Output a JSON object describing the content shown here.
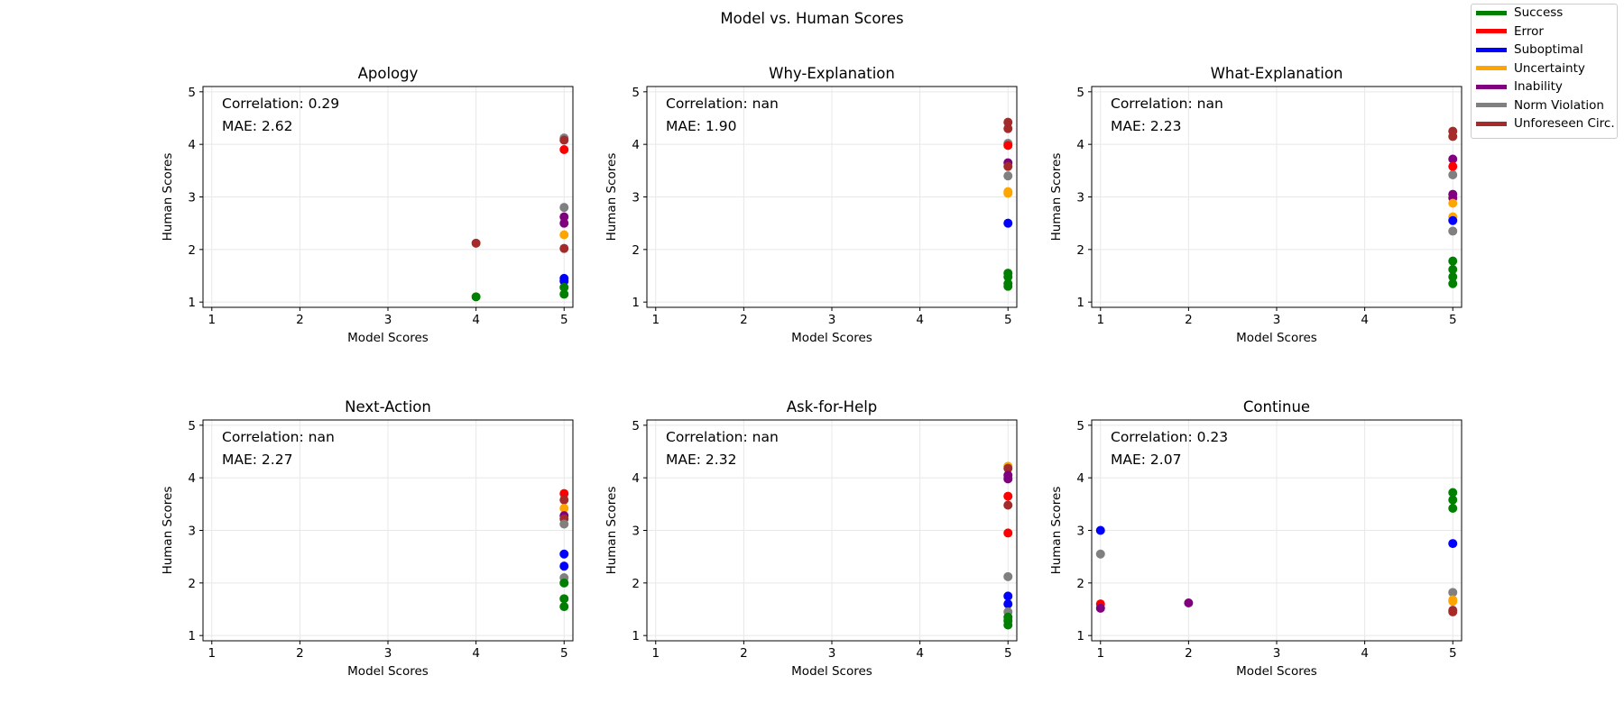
{
  "figure_title": "Model vs. Human Scores",
  "legend": [
    {
      "label": "Success",
      "color": "#008000"
    },
    {
      "label": "Error",
      "color": "#ff0000"
    },
    {
      "label": "Suboptimal",
      "color": "#0000ff"
    },
    {
      "label": "Uncertainty",
      "color": "#ffa500"
    },
    {
      "label": "Inability",
      "color": "#800080"
    },
    {
      "label": "Norm Violation",
      "color": "#808080"
    },
    {
      "label": "Unforeseen Circ.",
      "color": "#a52a2a"
    }
  ],
  "chart_data": [
    {
      "type": "scatter",
      "title": "Apology",
      "xlabel": "Model Scores",
      "ylabel": "Human Scores",
      "xlim": [
        0.9,
        5.1
      ],
      "ylim": [
        0.9,
        5.1
      ],
      "xticks": [
        1,
        2,
        3,
        4,
        5
      ],
      "yticks": [
        1,
        2,
        3,
        4,
        5
      ],
      "grid": true,
      "annotations": [
        "Correlation: 0.29",
        "MAE: 2.62"
      ],
      "points": [
        {
          "x": 5,
          "y": 4.12,
          "series": "Norm Violation"
        },
        {
          "x": 5,
          "y": 4.08,
          "series": "Unforeseen Circ."
        },
        {
          "x": 5,
          "y": 3.9,
          "series": "Error"
        },
        {
          "x": 5,
          "y": 2.8,
          "series": "Norm Violation"
        },
        {
          "x": 5,
          "y": 2.62,
          "series": "Inability"
        },
        {
          "x": 5,
          "y": 2.5,
          "series": "Inability"
        },
        {
          "x": 5,
          "y": 2.28,
          "series": "Uncertainty"
        },
        {
          "x": 5,
          "y": 2.02,
          "series": "Unforeseen Circ."
        },
        {
          "x": 4,
          "y": 2.12,
          "series": "Unforeseen Circ."
        },
        {
          "x": 5,
          "y": 1.45,
          "series": "Suboptimal"
        },
        {
          "x": 5,
          "y": 1.4,
          "series": "Suboptimal"
        },
        {
          "x": 5,
          "y": 1.28,
          "series": "Success"
        },
        {
          "x": 5,
          "y": 1.15,
          "series": "Success"
        },
        {
          "x": 4,
          "y": 1.1,
          "series": "Success"
        }
      ]
    },
    {
      "type": "scatter",
      "title": "Why-Explanation",
      "xlabel": "Model Scores",
      "ylabel": "Human Scores",
      "xlim": [
        0.9,
        5.1
      ],
      "ylim": [
        0.9,
        5.1
      ],
      "xticks": [
        1,
        2,
        3,
        4,
        5
      ],
      "yticks": [
        1,
        2,
        3,
        4,
        5
      ],
      "grid": true,
      "annotations": [
        "Correlation: nan",
        "MAE: 1.90"
      ],
      "points": [
        {
          "x": 5,
          "y": 4.42,
          "series": "Unforeseen Circ."
        },
        {
          "x": 5,
          "y": 4.3,
          "series": "Unforeseen Circ."
        },
        {
          "x": 5,
          "y": 4.02,
          "series": "Norm Violation"
        },
        {
          "x": 5,
          "y": 3.98,
          "series": "Error"
        },
        {
          "x": 5,
          "y": 3.65,
          "series": "Inability"
        },
        {
          "x": 5,
          "y": 3.58,
          "series": "Unforeseen Circ."
        },
        {
          "x": 5,
          "y": 3.4,
          "series": "Norm Violation"
        },
        {
          "x": 5,
          "y": 3.1,
          "series": "Uncertainty"
        },
        {
          "x": 5,
          "y": 3.07,
          "series": "Uncertainty"
        },
        {
          "x": 5,
          "y": 2.5,
          "series": "Suboptimal"
        },
        {
          "x": 5,
          "y": 1.55,
          "series": "Success"
        },
        {
          "x": 5,
          "y": 1.48,
          "series": "Success"
        },
        {
          "x": 5,
          "y": 1.35,
          "series": "Success"
        },
        {
          "x": 5,
          "y": 1.3,
          "series": "Success"
        }
      ]
    },
    {
      "type": "scatter",
      "title": "What-Explanation",
      "xlabel": "Model Scores",
      "ylabel": "Human Scores",
      "xlim": [
        0.9,
        5.1
      ],
      "ylim": [
        0.9,
        5.1
      ],
      "xticks": [
        1,
        2,
        3,
        4,
        5
      ],
      "yticks": [
        1,
        2,
        3,
        4,
        5
      ],
      "grid": true,
      "annotations": [
        "Correlation: nan",
        "MAE: 2.23"
      ],
      "points": [
        {
          "x": 5,
          "y": 4.25,
          "series": "Unforeseen Circ."
        },
        {
          "x": 5,
          "y": 4.15,
          "series": "Unforeseen Circ."
        },
        {
          "x": 5,
          "y": 3.72,
          "series": "Inability"
        },
        {
          "x": 5,
          "y": 3.58,
          "series": "Error"
        },
        {
          "x": 5,
          "y": 3.42,
          "series": "Norm Violation"
        },
        {
          "x": 5,
          "y": 3.05,
          "series": "Inability"
        },
        {
          "x": 5,
          "y": 2.98,
          "series": "Inability"
        },
        {
          "x": 5,
          "y": 2.88,
          "series": "Uncertainty"
        },
        {
          "x": 5,
          "y": 2.62,
          "series": "Uncertainty"
        },
        {
          "x": 5,
          "y": 2.55,
          "series": "Suboptimal"
        },
        {
          "x": 5,
          "y": 2.35,
          "series": "Norm Violation"
        },
        {
          "x": 5,
          "y": 1.78,
          "series": "Success"
        },
        {
          "x": 5,
          "y": 1.62,
          "series": "Success"
        },
        {
          "x": 5,
          "y": 1.48,
          "series": "Success"
        },
        {
          "x": 5,
          "y": 1.35,
          "series": "Success"
        }
      ]
    },
    {
      "type": "scatter",
      "title": "Next-Action",
      "xlabel": "Model Scores",
      "ylabel": "Human Scores",
      "xlim": [
        0.9,
        5.1
      ],
      "ylim": [
        0.9,
        5.1
      ],
      "xticks": [
        1,
        2,
        3,
        4,
        5
      ],
      "yticks": [
        1,
        2,
        3,
        4,
        5
      ],
      "grid": true,
      "annotations": [
        "Correlation: nan",
        "MAE: 2.27"
      ],
      "points": [
        {
          "x": 5,
          "y": 3.7,
          "series": "Error"
        },
        {
          "x": 5,
          "y": 3.58,
          "series": "Unforeseen Circ."
        },
        {
          "x": 5,
          "y": 3.42,
          "series": "Uncertainty"
        },
        {
          "x": 5,
          "y": 3.28,
          "series": "Inability"
        },
        {
          "x": 5,
          "y": 3.22,
          "series": "Unforeseen Circ."
        },
        {
          "x": 5,
          "y": 3.12,
          "series": "Norm Violation"
        },
        {
          "x": 5,
          "y": 2.55,
          "series": "Suboptimal"
        },
        {
          "x": 5,
          "y": 2.32,
          "series": "Suboptimal"
        },
        {
          "x": 5,
          "y": 2.1,
          "series": "Norm Violation"
        },
        {
          "x": 5,
          "y": 2.0,
          "series": "Success"
        },
        {
          "x": 5,
          "y": 1.7,
          "series": "Success"
        },
        {
          "x": 5,
          "y": 1.55,
          "series": "Success"
        }
      ]
    },
    {
      "type": "scatter",
      "title": "Ask-for-Help",
      "xlabel": "Model Scores",
      "ylabel": "Human Scores",
      "xlim": [
        0.9,
        5.1
      ],
      "ylim": [
        0.9,
        5.1
      ],
      "xticks": [
        1,
        2,
        3,
        4,
        5
      ],
      "yticks": [
        1,
        2,
        3,
        4,
        5
      ],
      "grid": true,
      "annotations": [
        "Correlation: nan",
        "MAE: 2.32"
      ],
      "points": [
        {
          "x": 5,
          "y": 4.22,
          "series": "Uncertainty"
        },
        {
          "x": 5,
          "y": 4.18,
          "series": "Unforeseen Circ."
        },
        {
          "x": 5,
          "y": 4.05,
          "series": "Inability"
        },
        {
          "x": 5,
          "y": 3.98,
          "series": "Inability"
        },
        {
          "x": 5,
          "y": 3.65,
          "series": "Error"
        },
        {
          "x": 5,
          "y": 3.48,
          "series": "Unforeseen Circ."
        },
        {
          "x": 5,
          "y": 2.95,
          "series": "Error"
        },
        {
          "x": 5,
          "y": 2.12,
          "series": "Norm Violation"
        },
        {
          "x": 5,
          "y": 1.75,
          "series": "Suboptimal"
        },
        {
          "x": 5,
          "y": 1.6,
          "series": "Suboptimal"
        },
        {
          "x": 5,
          "y": 1.45,
          "series": "Norm Violation"
        },
        {
          "x": 5,
          "y": 1.35,
          "series": "Success"
        },
        {
          "x": 5,
          "y": 1.28,
          "series": "Success"
        },
        {
          "x": 5,
          "y": 1.2,
          "series": "Success"
        }
      ]
    },
    {
      "type": "scatter",
      "title": "Continue",
      "xlabel": "Model Scores",
      "ylabel": "Human Scores",
      "xlim": [
        0.9,
        5.1
      ],
      "ylim": [
        0.9,
        5.1
      ],
      "xticks": [
        1,
        2,
        3,
        4,
        5
      ],
      "yticks": [
        1,
        2,
        3,
        4,
        5
      ],
      "grid": true,
      "annotations": [
        "Correlation: 0.23",
        "MAE: 2.07"
      ],
      "points": [
        {
          "x": 1,
          "y": 3.0,
          "series": "Suboptimal"
        },
        {
          "x": 1,
          "y": 2.55,
          "series": "Norm Violation"
        },
        {
          "x": 1,
          "y": 1.6,
          "series": "Error"
        },
        {
          "x": 1,
          "y": 1.52,
          "series": "Inability"
        },
        {
          "x": 2,
          "y": 1.62,
          "series": "Inability"
        },
        {
          "x": 5,
          "y": 3.72,
          "series": "Success"
        },
        {
          "x": 5,
          "y": 3.58,
          "series": "Success"
        },
        {
          "x": 5,
          "y": 3.42,
          "series": "Success"
        },
        {
          "x": 5,
          "y": 2.75,
          "series": "Suboptimal"
        },
        {
          "x": 5,
          "y": 1.82,
          "series": "Norm Violation"
        },
        {
          "x": 5,
          "y": 1.68,
          "series": "Uncertainty"
        },
        {
          "x": 5,
          "y": 1.65,
          "series": "Uncertainty"
        },
        {
          "x": 5,
          "y": 1.48,
          "series": "Unforeseen Circ."
        },
        {
          "x": 5,
          "y": 1.45,
          "series": "Unforeseen Circ."
        }
      ]
    }
  ]
}
